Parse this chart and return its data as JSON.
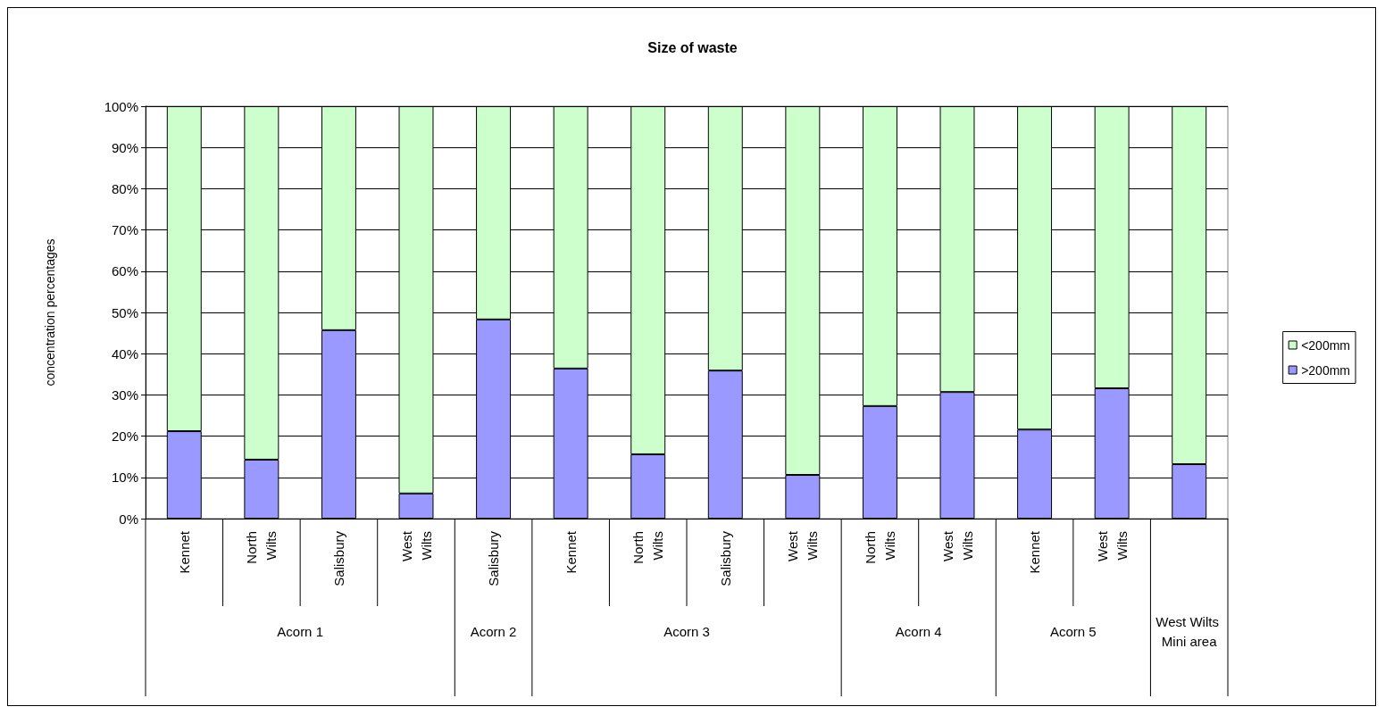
{
  "chart_data": {
    "type": "bar",
    "title": "Size of waste",
    "ylabel": "concentration percentages",
    "categories": [
      "Kennet",
      "North Wilts",
      "Salisbury",
      "West Wilts",
      "Salisbury",
      "Kennet",
      "North Wilts",
      "Salisbury",
      "West Wilts",
      "North Wilts",
      "West Wilts",
      "Kennet",
      "West Wilts",
      null
    ],
    "series": [
      {
        "name": ">200mm",
        "color": "#9999ff",
        "values": [
          21.2,
          14.3,
          45.7,
          6.1,
          48.3,
          36.4,
          15.6,
          35.9,
          10.6,
          27.3,
          30.7,
          21.6,
          31.6,
          13.2
        ]
      },
      {
        "name": "<200mm",
        "color": "#ccffcc",
        "values": [
          78.8,
          85.7,
          54.3,
          93.9,
          51.7,
          63.6,
          84.4,
          64.1,
          89.4,
          72.7,
          69.3,
          78.4,
          68.4,
          86.8
        ]
      }
    ],
    "stacked": true,
    "ylim": [
      0,
      100
    ],
    "yticks": [
      {
        "value": 0,
        "label": "0%"
      },
      {
        "value": 10,
        "label": "10%"
      },
      {
        "value": 20,
        "label": "20%"
      },
      {
        "value": 30,
        "label": "30%"
      },
      {
        "value": 40,
        "label": "40%"
      },
      {
        "value": 50,
        "label": "50%"
      },
      {
        "value": 60,
        "label": "60%"
      },
      {
        "value": 70,
        "label": "70%"
      },
      {
        "value": 80,
        "label": "80%"
      },
      {
        "value": 90,
        "label": "90%"
      },
      {
        "value": 100,
        "label": "100%"
      }
    ],
    "grid": "y",
    "legend": "right",
    "annotations": [
      "Acorn 1",
      "Acorn 2",
      "Acorn 3",
      "Acorn 4",
      "Acorn 5",
      "West Wilts Mini area"
    ]
  }
}
